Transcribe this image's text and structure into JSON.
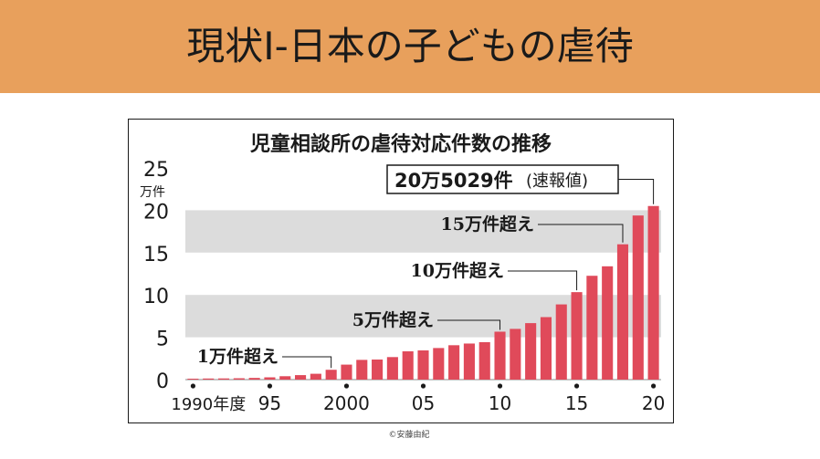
{
  "slide": {
    "title": "現状Ⅰ-日本の子どもの虐待",
    "credit": "©安藤由紀"
  },
  "colors": {
    "banner": "#e8a05c",
    "bar": "#e04a5a",
    "band": "#dcdcdc",
    "text": "#1a1a1a"
  },
  "chart_data": {
    "type": "bar",
    "title": "児童相談所の虐待対応件数の推移",
    "y_unit": "万件",
    "ylim": [
      0,
      25
    ],
    "y_ticks": [
      "0",
      "5",
      "10",
      "15",
      "20",
      "25"
    ],
    "x_tick_labels": [
      {
        "index": 0,
        "label": "1990年度"
      },
      {
        "index": 5,
        "label": "95"
      },
      {
        "index": 10,
        "label": "2000"
      },
      {
        "index": 15,
        "label": "05"
      },
      {
        "index": 20,
        "label": "10"
      },
      {
        "index": 25,
        "label": "15"
      },
      {
        "index": 30,
        "label": "20"
      }
    ],
    "categories": [
      "1990",
      "1991",
      "1992",
      "1993",
      "1994",
      "1995",
      "1996",
      "1997",
      "1998",
      "1999",
      "2000",
      "2001",
      "2002",
      "2003",
      "2004",
      "2005",
      "2006",
      "2007",
      "2008",
      "2009",
      "2010",
      "2011",
      "2012",
      "2013",
      "2014",
      "2015",
      "2016",
      "2017",
      "2018",
      "2019",
      "2020"
    ],
    "values": [
      0.11,
      0.13,
      0.14,
      0.16,
      0.2,
      0.27,
      0.4,
      0.53,
      0.69,
      1.16,
      1.77,
      2.33,
      2.37,
      2.66,
      3.34,
      3.45,
      3.73,
      4.06,
      4.26,
      4.42,
      5.66,
      5.99,
      6.67,
      7.38,
      8.88,
      10.33,
      12.26,
      13.38,
      15.98,
      19.38,
      20.5
    ],
    "annotations": [
      {
        "index": 9,
        "text": "1万件超え"
      },
      {
        "index": 20,
        "text": "5万件超え"
      },
      {
        "index": 25,
        "text": "10万件超え"
      },
      {
        "index": 28,
        "text": "15万件超え"
      },
      {
        "index": 30,
        "text": "20万5029件",
        "suffix": "(速報値)",
        "boxed": true
      }
    ],
    "grid": "alternating bands",
    "legend": "none"
  }
}
